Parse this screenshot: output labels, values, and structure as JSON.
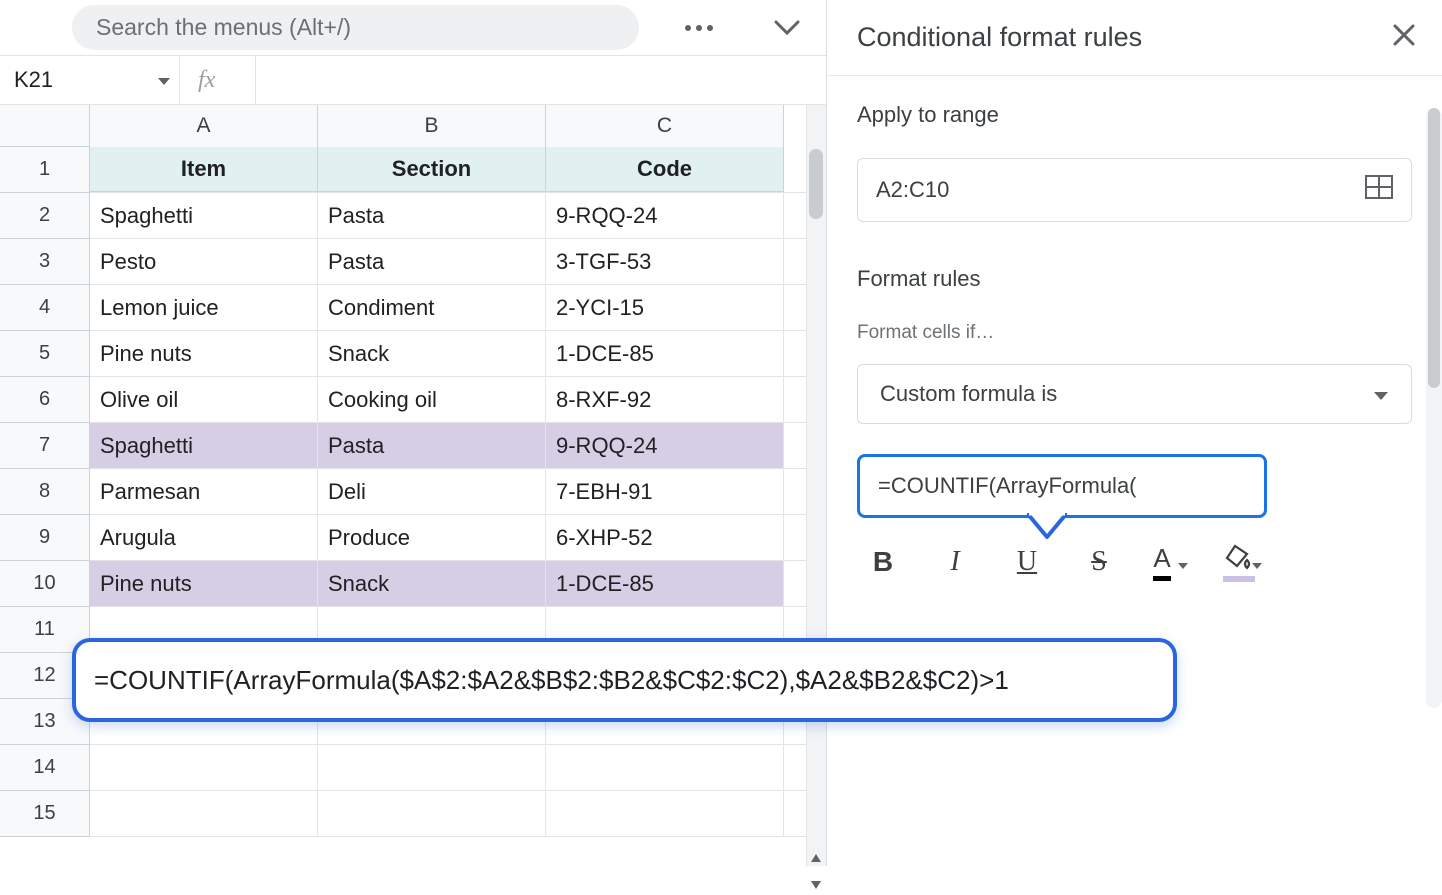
{
  "search": {
    "placeholder": "Search the menus (Alt+/)"
  },
  "namebox": {
    "value": "K21"
  },
  "columns": [
    "A",
    "B",
    "C"
  ],
  "headers": {
    "item": "Item",
    "section": "Section",
    "code": "Code"
  },
  "rows": [
    {
      "n": "1",
      "item": "Item",
      "section": "Section",
      "code": "Code",
      "type": "header"
    },
    {
      "n": "2",
      "item": "Spaghetti",
      "section": "Pasta",
      "code": "9-RQQ-24",
      "type": "data"
    },
    {
      "n": "3",
      "item": "Pesto",
      "section": "Pasta",
      "code": "3-TGF-53",
      "type": "data"
    },
    {
      "n": "4",
      "item": "Lemon juice",
      "section": "Condiment",
      "code": "2-YCI-15",
      "type": "data"
    },
    {
      "n": "5",
      "item": "Pine nuts",
      "section": "Snack",
      "code": "1-DCE-85",
      "type": "data"
    },
    {
      "n": "6",
      "item": "Olive oil",
      "section": "Cooking oil",
      "code": "8-RXF-92",
      "type": "data"
    },
    {
      "n": "7",
      "item": "Spaghetti",
      "section": "Pasta",
      "code": "9-RQQ-24",
      "type": "highlight"
    },
    {
      "n": "8",
      "item": "Parmesan",
      "section": "Deli",
      "code": "7-EBH-91",
      "type": "data"
    },
    {
      "n": "9",
      "item": "Arugula",
      "section": "Produce",
      "code": "6-XHP-52",
      "type": "data"
    },
    {
      "n": "10",
      "item": "Pine nuts",
      "section": "Snack",
      "code": "1-DCE-85",
      "type": "highlight"
    },
    {
      "n": "11",
      "item": "",
      "section": "",
      "code": "",
      "type": "empty"
    },
    {
      "n": "12",
      "item": "",
      "section": "",
      "code": "",
      "type": "empty"
    },
    {
      "n": "13",
      "item": "",
      "section": "",
      "code": "",
      "type": "empty"
    },
    {
      "n": "14",
      "item": "",
      "section": "",
      "code": "",
      "type": "empty"
    },
    {
      "n": "15",
      "item": "",
      "section": "",
      "code": "",
      "type": "empty"
    }
  ],
  "panel": {
    "title": "Conditional format rules",
    "apply_label": "Apply to range",
    "range_value": "A2:C10",
    "format_rules_label": "Format rules",
    "cells_if_label": "Format cells if…",
    "dropdown_value": "Custom formula is",
    "formula_preview": "=COUNTIF(ArrayFormula("
  },
  "callout": {
    "full_formula": "=COUNTIF(ArrayFormula($A$2:$A2&$B$2:$B2&$C$2:$C2),$A2&$B2&$C2)>1"
  },
  "format_toolbar": {
    "bold": "B",
    "italic": "I",
    "underline": "U",
    "strike": "S",
    "textcolor": "A"
  },
  "colors": {
    "header_row_bg": "#e1f1f1",
    "highlight_row_bg": "#d6cee4",
    "formula_border": "#1a73e8",
    "callout_border": "#2a67de",
    "fill_swatch": "#cbbfe2",
    "grid_border": "#e2e4e6",
    "panel_text": "#3c4043"
  }
}
